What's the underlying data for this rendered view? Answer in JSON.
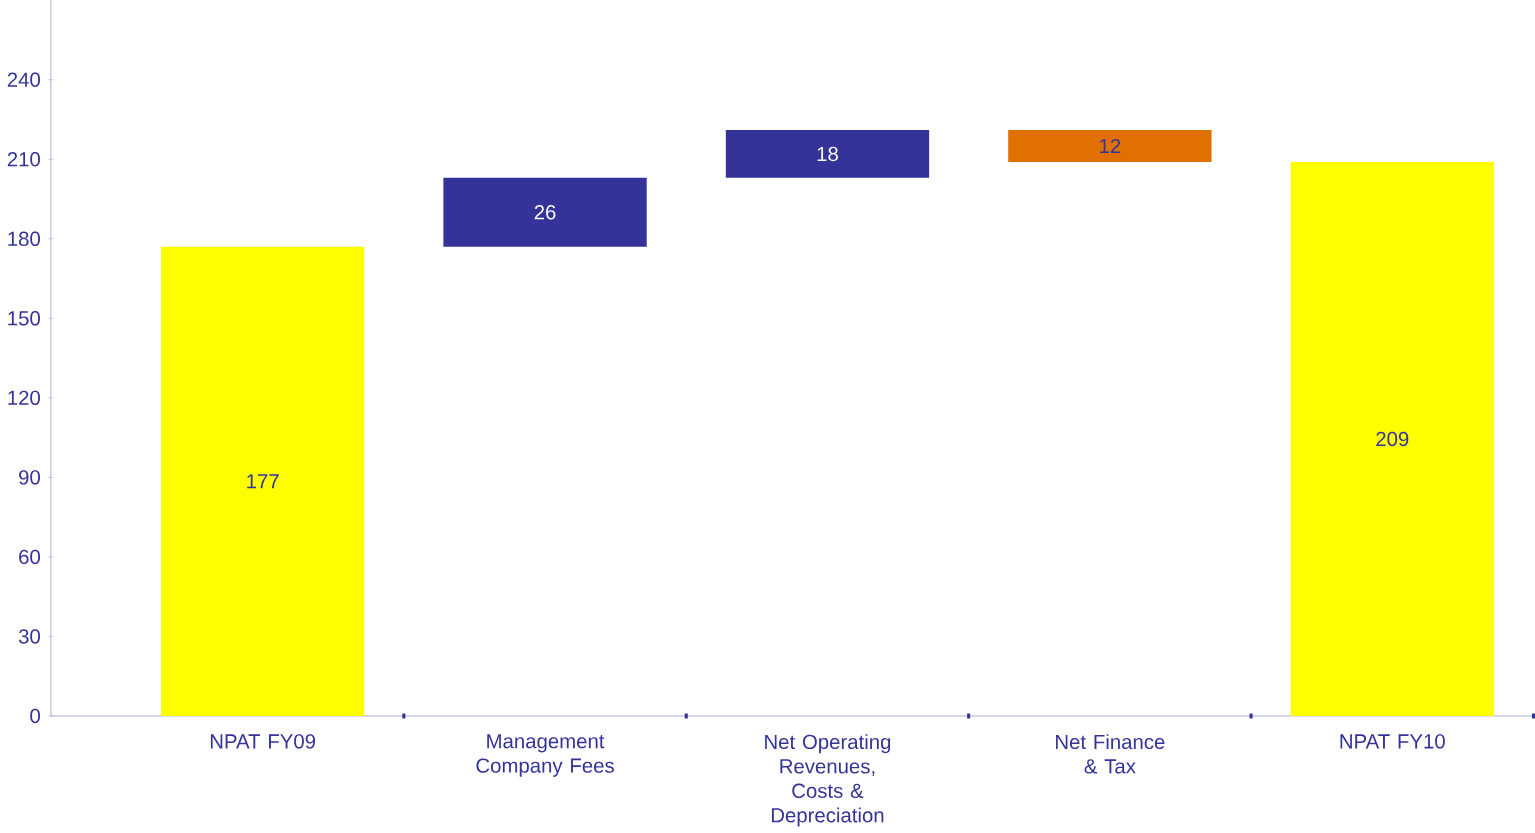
{
  "chart_data": {
    "type": "bar",
    "categories": [
      "NPAT FY09",
      "Management Company Fees",
      "Net Operating Revenues, Costs & Depreciation",
      "Net Finance & Tax",
      "NPAT FY10"
    ],
    "values": [
      177,
      26,
      18,
      -12,
      209
    ],
    "base": [
      0,
      177,
      203,
      221,
      0
    ],
    "colors": [
      "#ffff00",
      "#333399",
      "#333399",
      "#e07000",
      "#ffff00"
    ],
    "value_labels": [
      "177",
      "26",
      "18",
      "12",
      "209"
    ],
    "ylim": [
      0,
      270
    ],
    "yticks": [
      0,
      30,
      60,
      90,
      120,
      150,
      180,
      210,
      240
    ],
    "grid": false
  }
}
